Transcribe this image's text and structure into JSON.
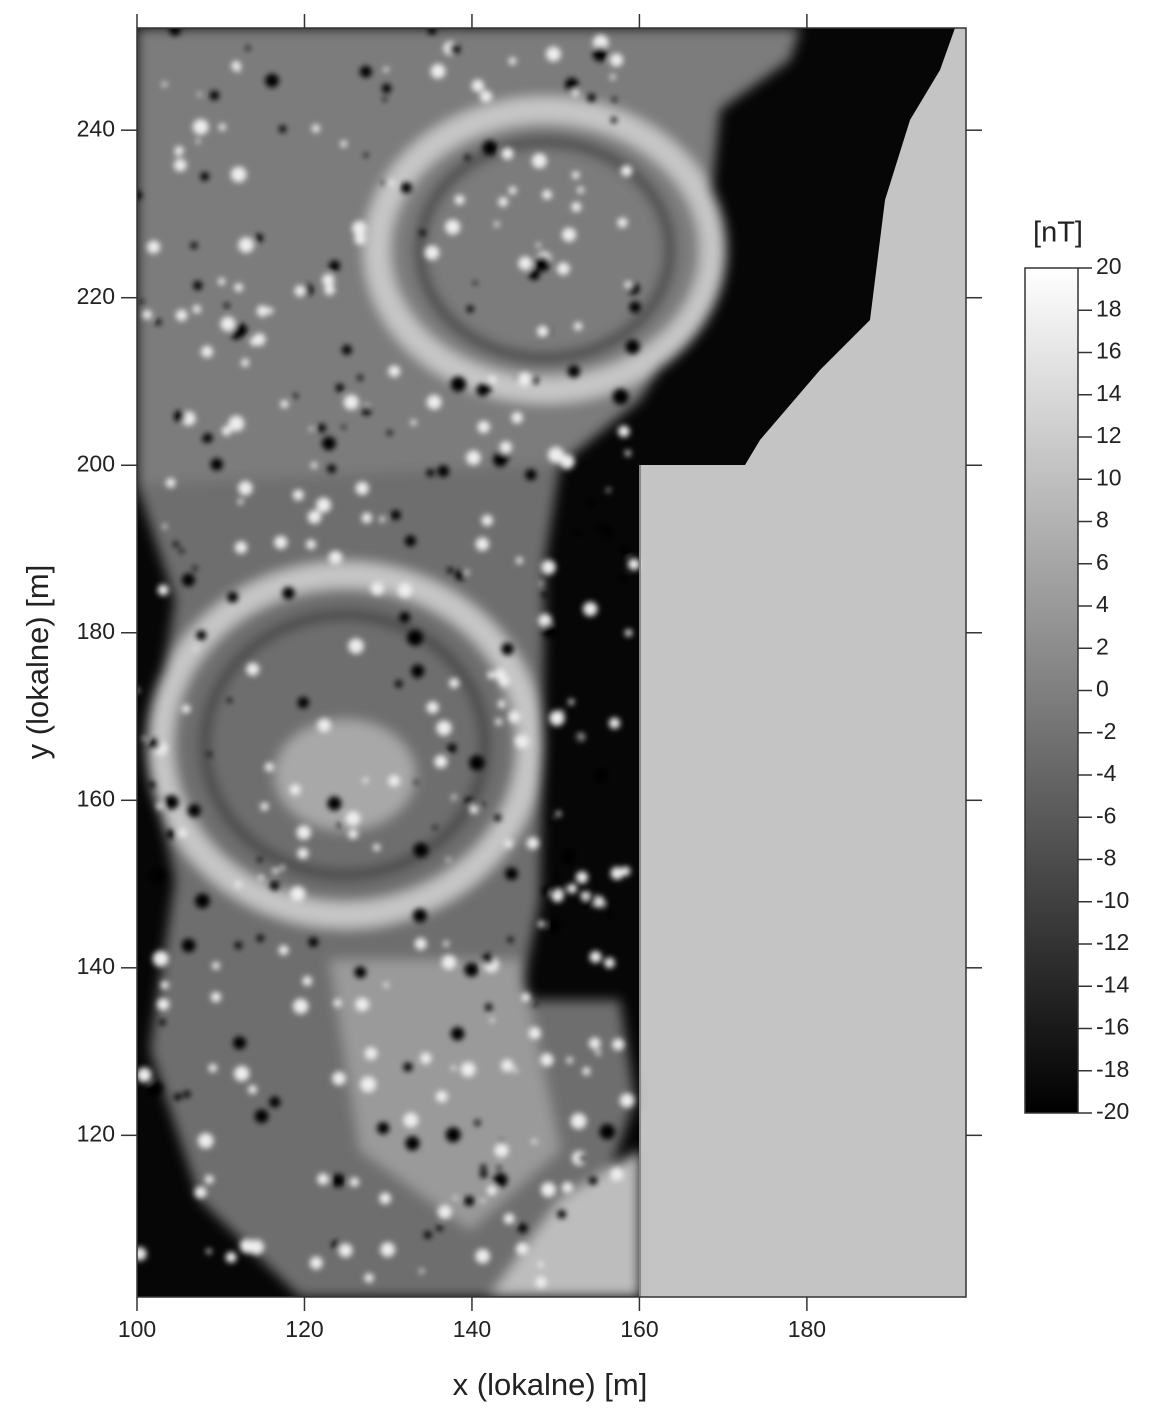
{
  "chart_data": {
    "type": "heatmap",
    "xlabel": "x (lokalne) [m]",
    "ylabel": "y (lokalne) [m]",
    "xlim": [
      100,
      199
    ],
    "ylim": [
      100.7,
      252.2
    ],
    "xticks": [
      100,
      120,
      140,
      160,
      180
    ],
    "yticks": [
      120,
      140,
      160,
      180,
      200,
      220,
      240
    ],
    "colormap": [
      "#000000",
      "#ffffff"
    ],
    "colorbar": {
      "label": "[nT]",
      "lim": [
        -20,
        20
      ],
      "ticks": [
        20,
        18,
        16,
        14,
        12,
        10,
        8,
        6,
        4,
        2,
        0,
        -2,
        -4,
        -6,
        -8,
        -10,
        -12,
        -14,
        -16,
        -18,
        -20
      ]
    }
  }
}
